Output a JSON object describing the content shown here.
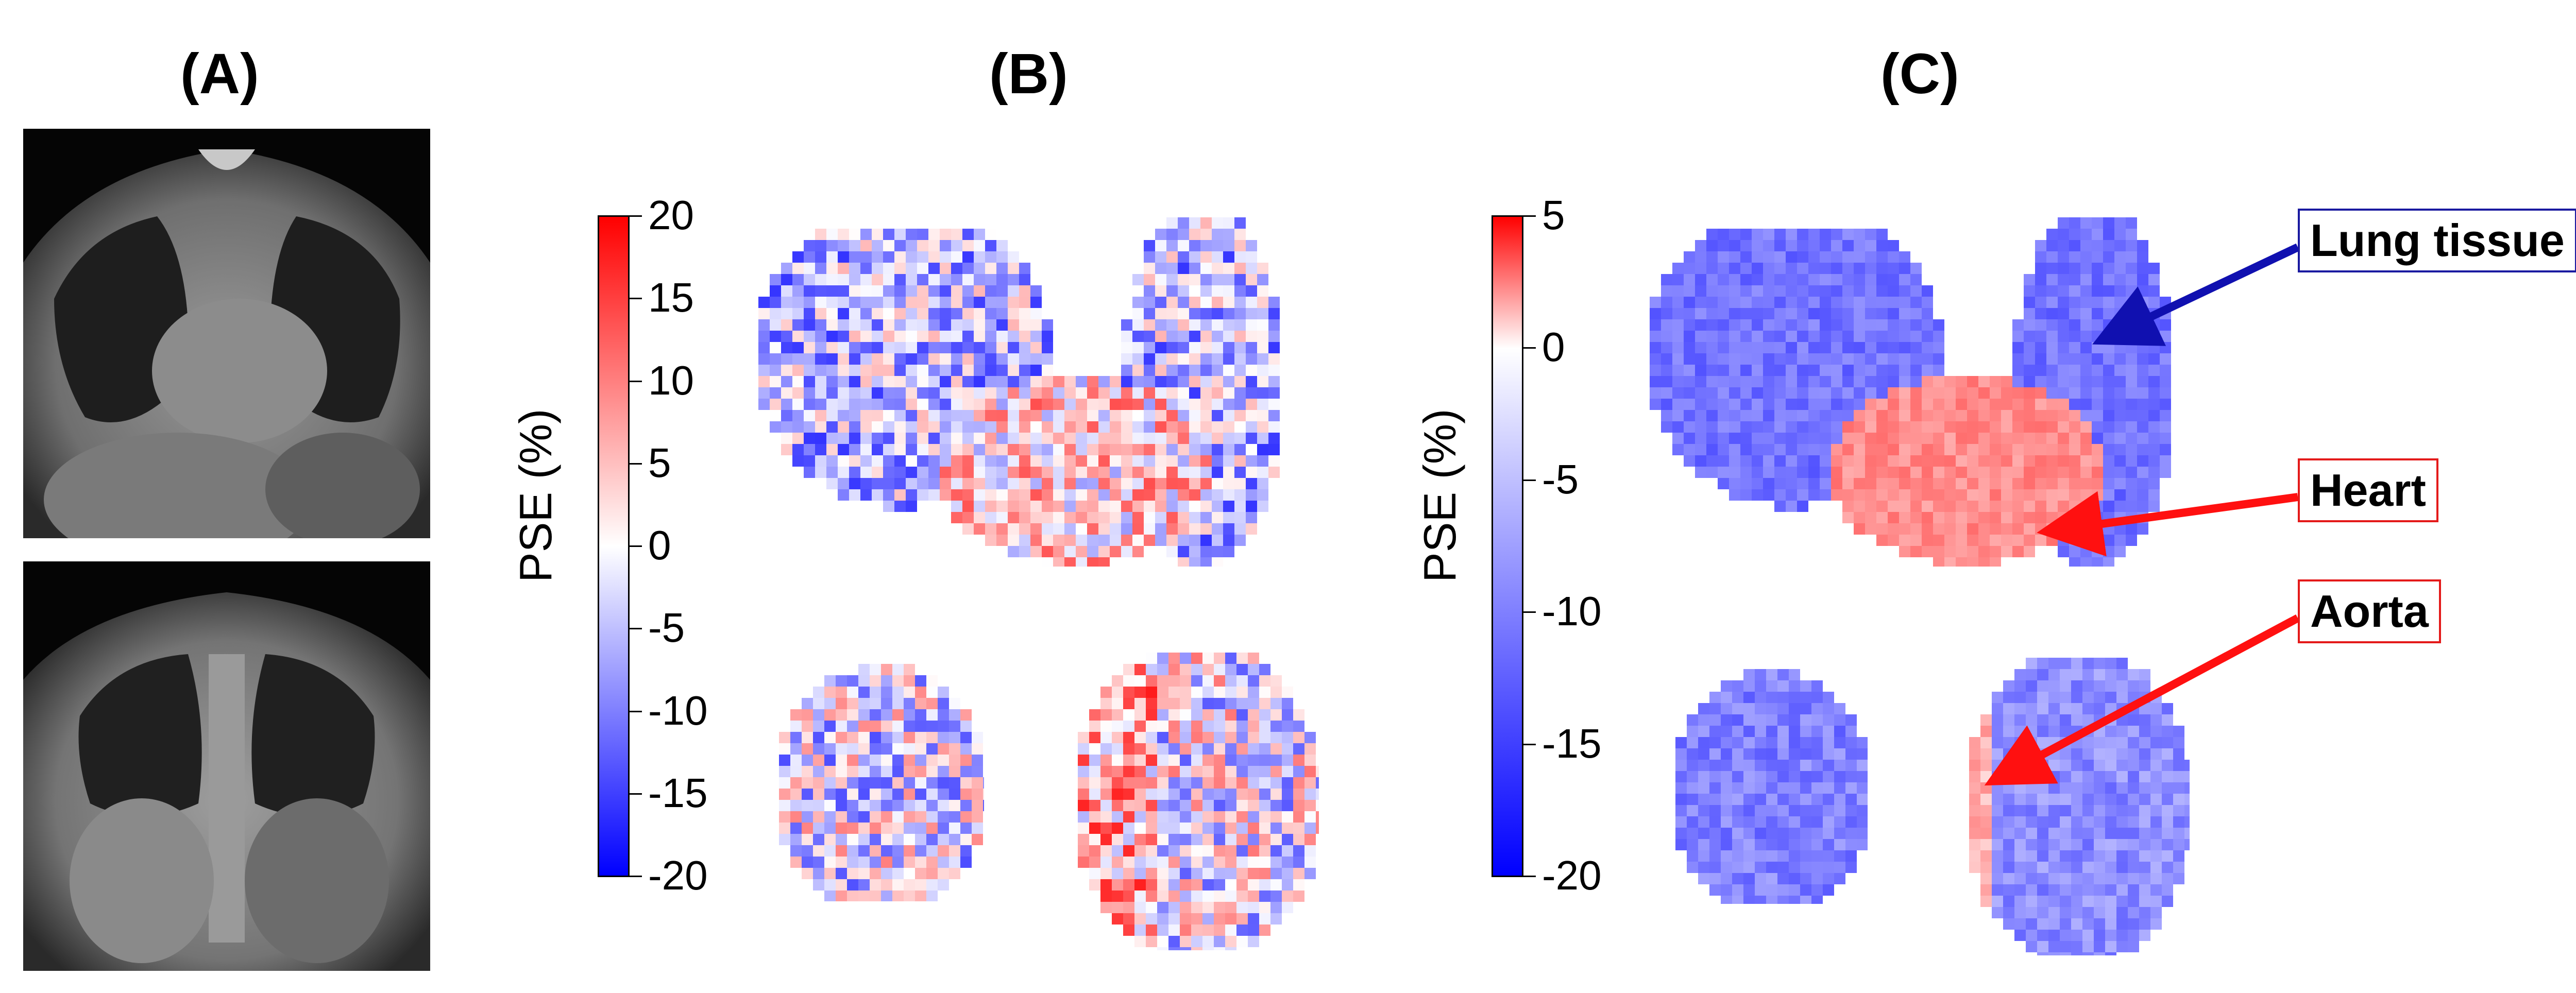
{
  "panels": {
    "a": {
      "label": "(A)"
    },
    "b": {
      "label": "(B)",
      "colorbar": {
        "title": "PSE (%)",
        "ticks": [
          "20",
          "15",
          "10",
          "5",
          "0",
          "-5",
          "-10",
          "-15",
          "-20"
        ],
        "range": [
          -20,
          20
        ],
        "colors": {
          "max": "#ff0000",
          "mid": "#ffffff",
          "min": "#0000ff"
        }
      }
    },
    "c": {
      "label": "(C)",
      "colorbar": {
        "title": "PSE (%)",
        "ticks": [
          "5",
          "0",
          "-5",
          "-10",
          "-15",
          "-20"
        ],
        "range": [
          -20,
          5
        ],
        "colors": {
          "max": "#ff0000",
          "mid": "#ffffff",
          "min": "#0000ff"
        }
      },
      "annotations": [
        {
          "text": "Lung tissue",
          "color": "#1a1aa0"
        },
        {
          "text": "Heart",
          "color": "#e41a1a"
        },
        {
          "text": "Aorta",
          "color": "#e41a1a"
        }
      ]
    }
  }
}
